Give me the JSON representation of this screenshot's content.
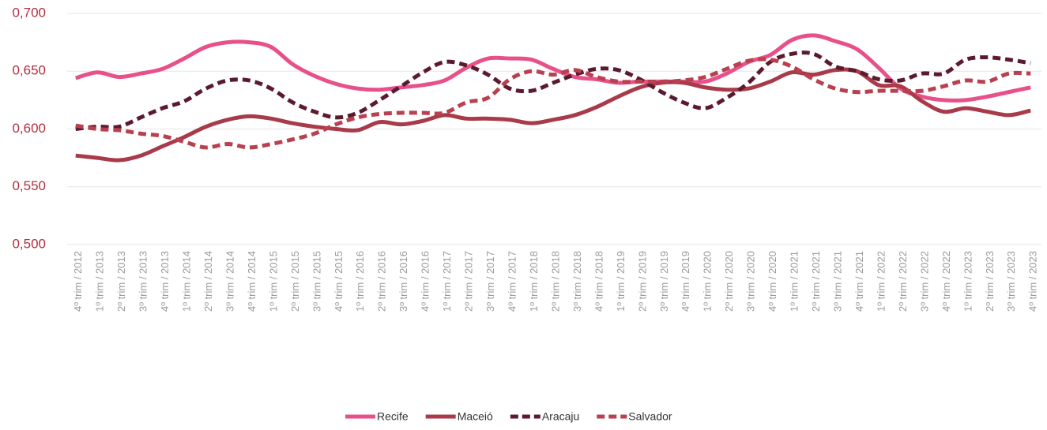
{
  "chart_data": {
    "type": "line",
    "categories": [
      "4º trim / 2012",
      "1º trim / 2013",
      "2º trim / 2013",
      "3º trim / 2013",
      "4º trim / 2013",
      "1º trim / 2014",
      "2º trim / 2014",
      "3º trim / 2014",
      "4º trim / 2014",
      "1º trim / 2015",
      "2º trim / 2015",
      "3º trim / 2015",
      "4º trim / 2015",
      "1º trim / 2016",
      "2º trim / 2016",
      "3º trim / 2016",
      "4º trim / 2016",
      "1º trim / 2017",
      "2º trim / 2017",
      "3º trim / 2017",
      "4º trim / 2017",
      "1º trim / 2018",
      "2º trim / 2018",
      "3º trim / 2018",
      "4º trim / 2018",
      "1º trim / 2019",
      "2º trim / 2019",
      "3º trim / 2019",
      "4º trim / 2019",
      "1º trim / 2020",
      "2º trim / 2020",
      "3º trim / 2020",
      "4º trim / 2020",
      "1º trim / 2021",
      "2º trim / 2021",
      "3º trim / 2021",
      "4º trim / 2021",
      "1º trim / 2022",
      "2º trim / 2022",
      "3º trim / 2022",
      "4º trim / 2022",
      "1º trim / 2023",
      "2º trim / 2023",
      "3º trim / 2023",
      "4º trim / 2023"
    ],
    "series": [
      {
        "name": "Recife",
        "color": "#e8508a",
        "dashed": false,
        "values": [
          0.644,
          0.649,
          0.645,
          0.648,
          0.652,
          0.661,
          0.671,
          0.675,
          0.675,
          0.671,
          0.656,
          0.646,
          0.639,
          0.635,
          0.634,
          0.636,
          0.638,
          0.642,
          0.653,
          0.661,
          0.661,
          0.66,
          0.652,
          0.645,
          0.643,
          0.64,
          0.641,
          0.641,
          0.641,
          0.641,
          0.648,
          0.658,
          0.664,
          0.677,
          0.681,
          0.676,
          0.669,
          0.653,
          0.635,
          0.628,
          0.625,
          0.625,
          0.628,
          0.632,
          0.636
        ]
      },
      {
        "name": "Maceió",
        "color": "#a83a4a",
        "dashed": false,
        "values": [
          0.577,
          0.575,
          0.573,
          0.577,
          0.585,
          0.593,
          0.602,
          0.608,
          0.611,
          0.609,
          0.605,
          0.602,
          0.6,
          0.599,
          0.606,
          0.604,
          0.607,
          0.612,
          0.609,
          0.609,
          0.608,
          0.605,
          0.608,
          0.612,
          0.619,
          0.628,
          0.636,
          0.64,
          0.64,
          0.636,
          0.634,
          0.635,
          0.641,
          0.649,
          0.647,
          0.651,
          0.65,
          0.638,
          0.637,
          0.624,
          0.615,
          0.618,
          0.615,
          0.612,
          0.616
        ]
      },
      {
        "name": "Aracaju",
        "color": "#5c1a2e",
        "dashed": true,
        "values": [
          0.6,
          0.602,
          0.602,
          0.61,
          0.618,
          0.624,
          0.635,
          0.642,
          0.642,
          0.635,
          0.623,
          0.615,
          0.61,
          0.614,
          0.625,
          0.637,
          0.649,
          0.658,
          0.655,
          0.647,
          0.635,
          0.633,
          0.64,
          0.647,
          0.652,
          0.651,
          0.643,
          0.632,
          0.623,
          0.618,
          0.627,
          0.64,
          0.658,
          0.665,
          0.665,
          0.654,
          0.65,
          0.643,
          0.642,
          0.648,
          0.648,
          0.66,
          0.662,
          0.66,
          0.657
        ]
      },
      {
        "name": "Salvador",
        "color": "#b8404f",
        "dashed": true,
        "values": [
          0.603,
          0.6,
          0.599,
          0.596,
          0.594,
          0.589,
          0.584,
          0.587,
          0.584,
          0.587,
          0.591,
          0.596,
          0.604,
          0.61,
          0.613,
          0.614,
          0.614,
          0.614,
          0.623,
          0.627,
          0.643,
          0.65,
          0.647,
          0.651,
          0.645,
          0.641,
          0.641,
          0.641,
          0.642,
          0.645,
          0.652,
          0.659,
          0.66,
          0.654,
          0.643,
          0.635,
          0.632,
          0.633,
          0.633,
          0.633,
          0.637,
          0.642,
          0.641,
          0.648,
          0.648
        ]
      }
    ],
    "ylim": [
      0.5,
      0.7
    ],
    "yticks": [
      {
        "value": 0.5,
        "label": "0,500"
      },
      {
        "value": 0.55,
        "label": "0,550"
      },
      {
        "value": 0.6,
        "label": "0,600"
      },
      {
        "value": 0.65,
        "label": "0,650"
      },
      {
        "value": 0.7,
        "label": "0,700"
      }
    ],
    "grid": true,
    "legend": "bottom"
  }
}
